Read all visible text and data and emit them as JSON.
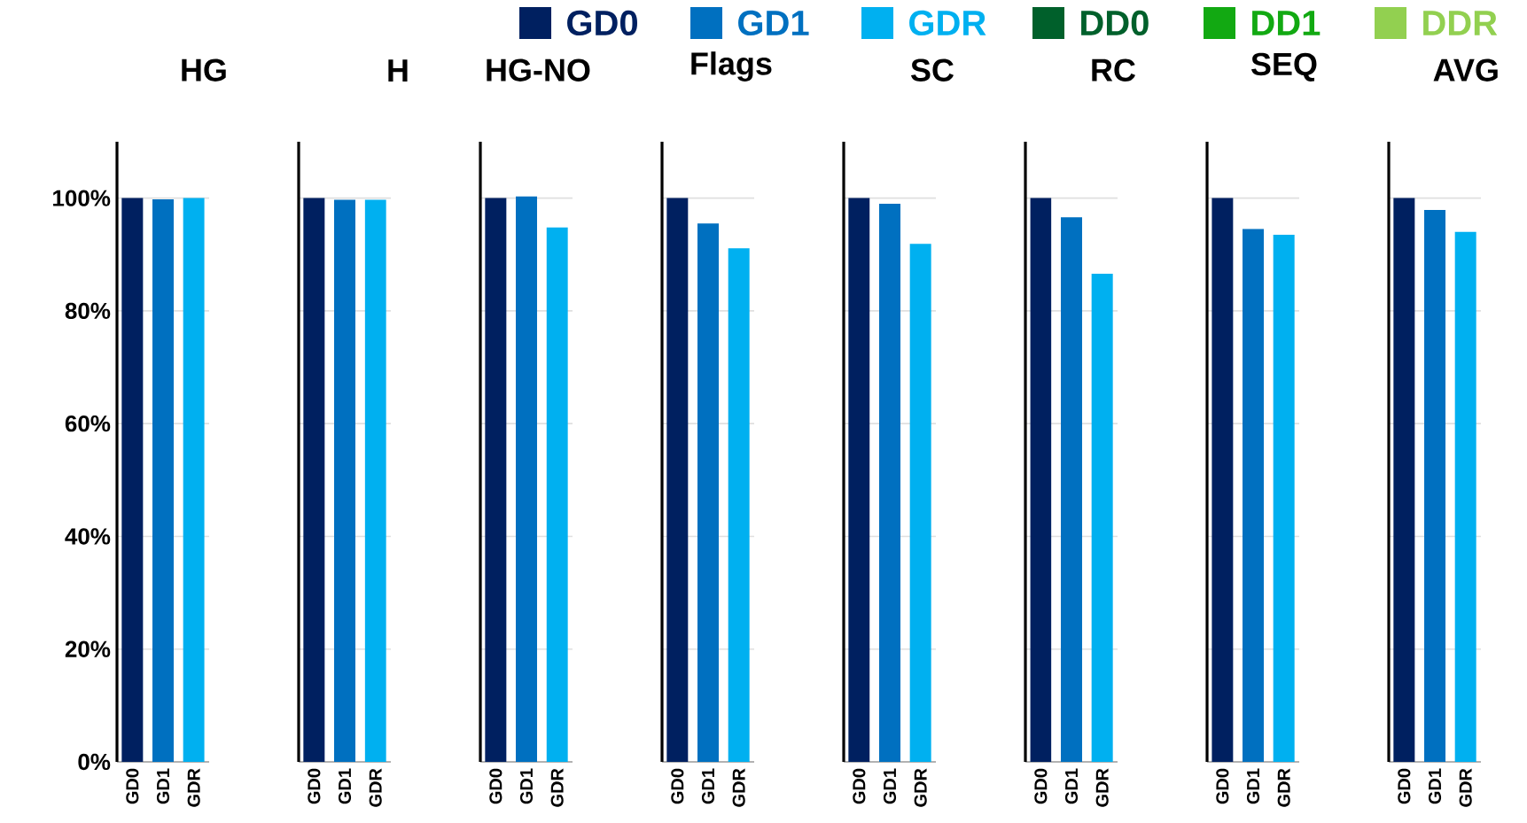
{
  "chart_data": [
    {
      "type": "bar",
      "title": "HG",
      "categories": [
        "GD0",
        "GD1",
        "GDR"
      ],
      "legend": "top",
      "grid": "y",
      "ylim": [
        0,
        110
      ],
      "yticks": [
        {
          "value": 0,
          "label": "0%"
        },
        {
          "value": 20,
          "label": "20%"
        },
        {
          "value": 40,
          "label": "40%"
        },
        {
          "value": 60,
          "label": "60%"
        },
        {
          "value": 80,
          "label": "80%"
        },
        {
          "value": 100,
          "label": "100%"
        }
      ],
      "series": [
        {
          "name": "GD0",
          "color": "#002060",
          "values": [
            100,
            null,
            null
          ]
        },
        {
          "name": "GD1",
          "color": "#0070c0",
          "values": [
            null,
            99.8,
            null
          ]
        },
        {
          "name": "GDR",
          "color": "#00b0f0",
          "values": [
            null,
            null,
            100
          ]
        },
        {
          "name": "DD0",
          "color": "#00602b",
          "values": [
            null,
            null,
            null
          ]
        },
        {
          "name": "DD1",
          "color": "#12a912",
          "values": [
            null,
            null,
            null
          ]
        },
        {
          "name": "DDR",
          "color": "#92d050",
          "values": [
            null,
            null,
            null
          ]
        }
      ]
    },
    {
      "type": "bar",
      "title": "H",
      "categories": [
        "GD0",
        "GD1",
        "GDR"
      ],
      "tick_labels": "x",
      "grid": "y",
      "ylim": [
        0,
        110
      ],
      "yticks": [
        0,
        20,
        40,
        60,
        80,
        100
      ],
      "values": [
        100,
        99.7,
        99.7
      ],
      "colors": [
        "#002060",
        "#0070c0",
        "#00b0f0"
      ]
    },
    {
      "type": "bar",
      "title": "HG-NO",
      "categories": [
        "GD0",
        "GD1",
        "GDR"
      ],
      "tick_labels": "x",
      "grid": "y",
      "ylim": [
        0,
        110
      ],
      "yticks": [
        0,
        20,
        40,
        60,
        80,
        100
      ],
      "values": [
        100,
        100.3,
        94.8
      ],
      "colors": [
        "#002060",
        "#0070c0",
        "#00b0f0"
      ]
    },
    {
      "type": "bar",
      "title": "Flags",
      "categories": [
        "GD0",
        "GD1",
        "GDR"
      ],
      "tick_labels": "x",
      "grid": "y",
      "ylim": [
        0,
        110
      ],
      "yticks": [
        0,
        20,
        40,
        60,
        80,
        100
      ],
      "values": [
        100,
        95.5,
        91.1
      ],
      "colors": [
        "#002060",
        "#0070c0",
        "#00b0f0"
      ]
    },
    {
      "type": "bar",
      "title": "SC",
      "categories": [
        "GD0",
        "GD1",
        "GDR"
      ],
      "tick_labels": "x",
      "grid": "y",
      "ylim": [
        0,
        110
      ],
      "yticks": [
        0,
        20,
        40,
        60,
        80,
        100
      ],
      "values": [
        100,
        99.0,
        91.9
      ],
      "colors": [
        "#002060",
        "#0070c0",
        "#00b0f0"
      ]
    },
    {
      "type": "bar",
      "title": "RC",
      "categories": [
        "GD0",
        "GD1",
        "GDR"
      ],
      "tick_labels": "x",
      "grid": "y",
      "ylim": [
        0,
        110
      ],
      "yticks": [
        0,
        20,
        40,
        60,
        80,
        100
      ],
      "values": [
        100,
        96.6,
        86.6
      ],
      "colors": [
        "#002060",
        "#0070c0",
        "#00b0f0"
      ]
    },
    {
      "type": "bar",
      "title": "SEQ",
      "categories": [
        "GD0",
        "GD1",
        "GDR"
      ],
      "tick_labels": "x",
      "grid": "y",
      "ylim": [
        0,
        110
      ],
      "yticks": [
        0,
        20,
        40,
        60,
        80,
        100
      ],
      "values": [
        100,
        94.5,
        93.5
      ],
      "colors": [
        "#002060",
        "#0070c0",
        "#00b0f0"
      ]
    },
    {
      "type": "bar",
      "title": "AVG",
      "categories": [
        "GD0",
        "GD1",
        "GDR"
      ],
      "tick_labels": "x",
      "grid": "y",
      "ylim": [
        0,
        110
      ],
      "yticks": [
        0,
        20,
        40,
        60,
        80,
        100
      ],
      "values": [
        100,
        97.9,
        94.0
      ],
      "colors": [
        "#002060",
        "#0070c0",
        "#00b0f0"
      ]
    }
  ]
}
